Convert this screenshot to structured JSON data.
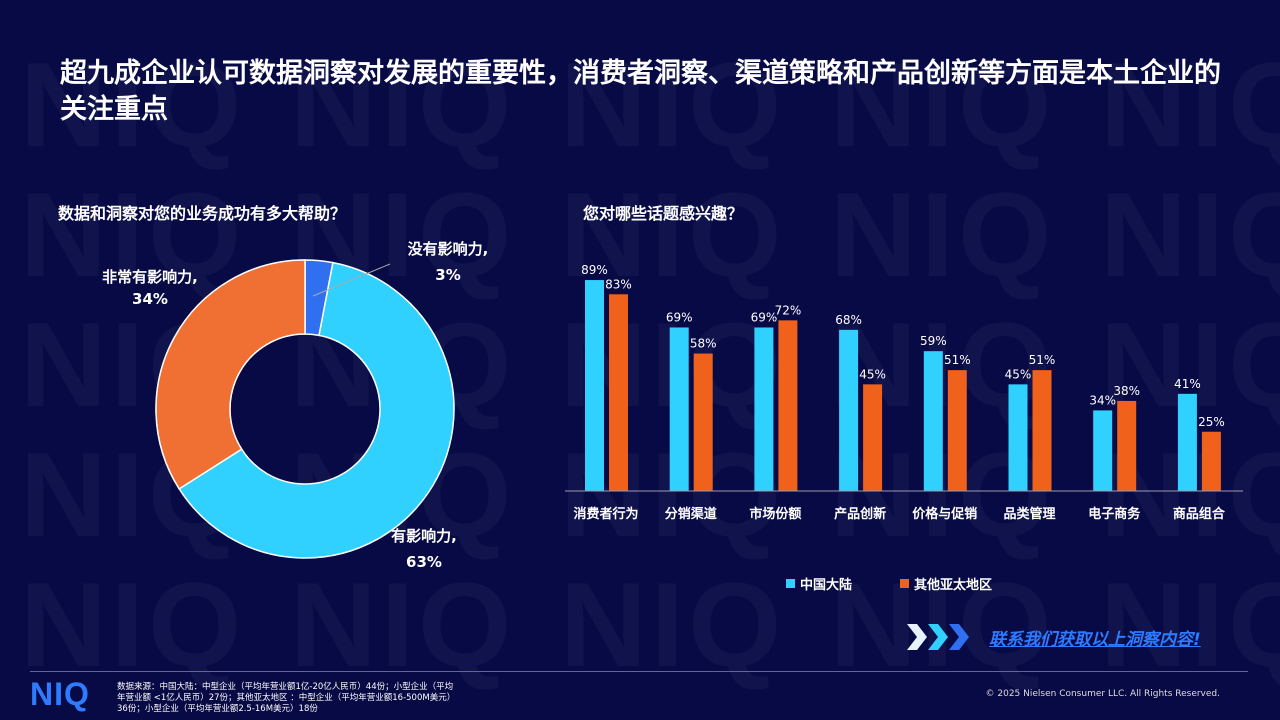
{
  "title": "超九成企业认可数据洞察对发展的重要性，消费者洞察、渠道策略和产品创新等方面是本土企业的关注重点",
  "watermark": "NIQ",
  "colors": {
    "background": "#080a45",
    "cyan": "#31d1ff",
    "orange": "#f0611c",
    "blue": "#2f6ff0",
    "brand": "#2f7bff"
  },
  "chart_data": [
    {
      "type": "pie",
      "donut": true,
      "title": "数据和洞察对您的业务成功有多大帮助？",
      "slices": [
        {
          "label": "没有影响力,",
          "value": 3,
          "display": "3%",
          "color": "#2f6ff0"
        },
        {
          "label": "有影响力,",
          "value": 63,
          "display": "63%",
          "color": "#31d1ff"
        },
        {
          "label": "非常有影响力,",
          "value": 34,
          "display": "34%",
          "color": "#ef7030"
        }
      ]
    },
    {
      "type": "bar",
      "title": "您对哪些话题感兴趣？",
      "categories": [
        "消费者行为",
        "分销渠道",
        "市场份额",
        "产品创新",
        "价格与促销",
        "品类管理",
        "电子商务",
        "商品组合"
      ],
      "series": [
        {
          "name": "中国大陆",
          "color": "#31d1ff",
          "values": [
            89,
            69,
            69,
            68,
            59,
            45,
            34,
            41
          ]
        },
        {
          "name": "其他亚太地区",
          "color": "#f0611c",
          "values": [
            83,
            58,
            72,
            45,
            51,
            51,
            38,
            25
          ]
        }
      ],
      "unit": "%",
      "legend": "bottom",
      "grid": false
    }
  ],
  "cta": "联系我们获取以上洞察内容!",
  "footer": {
    "logo": "NIQ",
    "source": "数据来源：中国大陆：中型企业（平均年营业额1亿-20亿人民币）44份；小型企业（平均年营业额 <1亿人民币）27份；其他亚太地区 ：中型企业（平均年营业额16-500M美元）36份；小型企业（平均年营业额2.5-16M美元）18份",
    "copyright": "© 2025 Nielsen Consumer LLC. All Rights Reserved."
  }
}
